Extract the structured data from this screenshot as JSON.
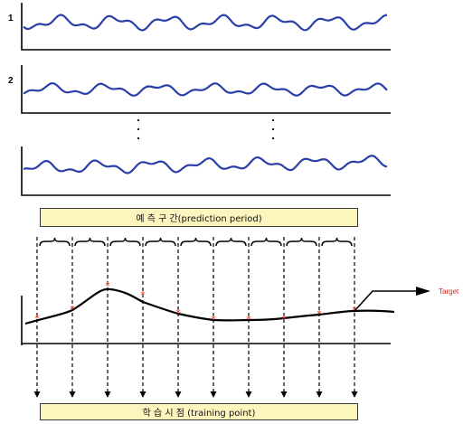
{
  "rows": [
    {
      "label": "1"
    },
    {
      "label": "2"
    },
    {
      "label": ""
    }
  ],
  "banners": {
    "prediction": "예 측 구 간(prediction period)",
    "training": "학 습 시 점 (training point)"
  },
  "target_label": "Target",
  "colors": {
    "wave": "#2b3fa8",
    "marker": "#e8341c",
    "banner_fill": "#fdf5be",
    "target_text": "#e02020"
  },
  "icons": {
    "marker": "asterisk-marker-icon",
    "arrow": "arrow-down-icon"
  }
}
